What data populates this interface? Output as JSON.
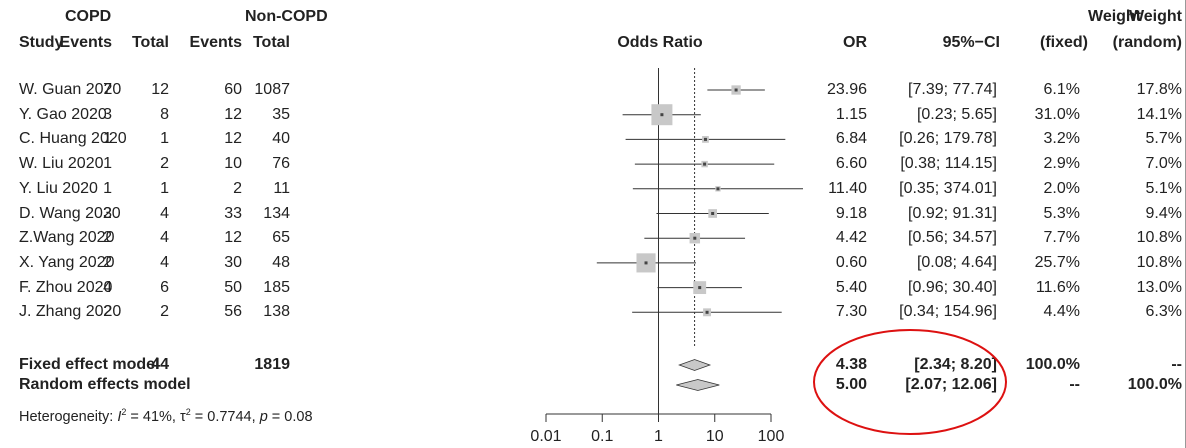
{
  "header": {
    "copd": "COPD",
    "non_copd": "Non-COPD",
    "study": "Study",
    "events1": "Events",
    "total1": "Total",
    "events2": "Events",
    "total2": "Total",
    "odds_ratio": "Odds Ratio",
    "or": "OR",
    "ci": "95%−CI",
    "weight1": "Weight",
    "fixed": "(fixed)",
    "weight2": "Weight",
    "random": "(random)"
  },
  "studies": [
    {
      "study": "W. Guan 2020",
      "ev1": "7",
      "tot1": "12",
      "ev2": "60",
      "tot2": "1087",
      "or": "23.96",
      "ci": "[7.39; 77.74]",
      "wf": "6.1%",
      "wr": "17.8%"
    },
    {
      "study": "Y. Gao 2020",
      "ev1": "3",
      "tot1": "8",
      "ev2": "12",
      "tot2": "35",
      "or": "1.15",
      "ci": "[0.23; 5.65]",
      "wf": "31.0%",
      "wr": "14.1%"
    },
    {
      "study": "C. Huang 2020",
      "ev1": "1",
      "tot1": "1",
      "ev2": "12",
      "tot2": "40",
      "or": "6.84",
      "ci": "[0.26; 179.78]",
      "wf": "3.2%",
      "wr": "5.7%"
    },
    {
      "study": "W. Liu 2020",
      "ev1": "1",
      "tot1": "2",
      "ev2": "10",
      "tot2": "76",
      "or": "6.60",
      "ci": "[0.38; 114.15]",
      "wf": "2.9%",
      "wr": "7.0%"
    },
    {
      "study": "Y. Liu 2020",
      "ev1": "1",
      "tot1": "1",
      "ev2": "2",
      "tot2": "11",
      "or": "11.40",
      "ci": "[0.35; 374.01]",
      "wf": "2.0%",
      "wr": "5.1%"
    },
    {
      "study": "D. Wang 2020",
      "ev1": "3",
      "tot1": "4",
      "ev2": "33",
      "tot2": "134",
      "or": "9.18",
      "ci": "[0.92; 91.31]",
      "wf": "5.3%",
      "wr": "9.4%"
    },
    {
      "study": "Z.Wang 2020",
      "ev1": "2",
      "tot1": "4",
      "ev2": "12",
      "tot2": "65",
      "or": "4.42",
      "ci": "[0.56; 34.57]",
      "wf": "7.7%",
      "wr": "10.8%"
    },
    {
      "study": "X. Yang 2020",
      "ev1": "2",
      "tot1": "4",
      "ev2": "30",
      "tot2": "48",
      "or": "0.60",
      "ci": "[0.08; 4.64]",
      "wf": "25.7%",
      "wr": "10.8%"
    },
    {
      "study": "F. Zhou 2020",
      "ev1": "4",
      "tot1": "6",
      "ev2": "50",
      "tot2": "185",
      "or": "5.40",
      "ci": "[0.96; 30.40]",
      "wf": "11.6%",
      "wr": "13.0%"
    },
    {
      "study": "J. Zhang 2020",
      "ev1": "2",
      "tot1": "2",
      "ev2": "56",
      "tot2": "138",
      "or": "7.30",
      "ci": "[0.34; 154.96]",
      "wf": "4.4%",
      "wr": "6.3%"
    }
  ],
  "fixed": {
    "label": "Fixed effect model",
    "tot1": "44",
    "tot2": "1819",
    "or": "4.38",
    "ci": "[2.34; 8.20]",
    "wf": "100.0%",
    "wr": "--"
  },
  "random": {
    "label": "Random effects model",
    "or": "5.00",
    "ci": "[2.07; 12.06]",
    "wf": "--",
    "wr": "100.0%"
  },
  "heterogeneity": {
    "prefix": "Heterogeneity: ",
    "i_sym": "I",
    "sup2": "2",
    "i_val": " = 41%, ",
    "tau_sym": "τ",
    "tau_val": " = 0.7744, ",
    "p_sym": "p",
    "p_val": " = 0.08"
  },
  "axis_ticks": [
    "0.01",
    "0.1",
    "1",
    "10",
    "100"
  ],
  "chart_data": {
    "type": "forest",
    "scale": "log",
    "xlim": [
      0.01,
      100
    ],
    "xticks": [
      0.01,
      0.1,
      1,
      10,
      100
    ],
    "reference_line": 1,
    "pooled_line": 4.38,
    "points": [
      {
        "or": 23.96,
        "lo": 7.39,
        "hi": 77.74,
        "weight": 6.1
      },
      {
        "or": 1.15,
        "lo": 0.23,
        "hi": 5.65,
        "weight": 31.0
      },
      {
        "or": 6.84,
        "lo": 0.26,
        "hi": 179.78,
        "weight": 3.2
      },
      {
        "or": 6.6,
        "lo": 0.38,
        "hi": 114.15,
        "weight": 2.9
      },
      {
        "or": 11.4,
        "lo": 0.35,
        "hi": 374.01,
        "weight": 2.0
      },
      {
        "or": 9.18,
        "lo": 0.92,
        "hi": 91.31,
        "weight": 5.3
      },
      {
        "or": 4.42,
        "lo": 0.56,
        "hi": 34.57,
        "weight": 7.7
      },
      {
        "or": 0.6,
        "lo": 0.08,
        "hi": 4.64,
        "weight": 25.7
      },
      {
        "or": 5.4,
        "lo": 0.96,
        "hi": 30.4,
        "weight": 11.6
      },
      {
        "or": 7.3,
        "lo": 0.34,
        "hi": 154.96,
        "weight": 4.4
      }
    ],
    "diamonds": [
      {
        "or": 4.38,
        "lo": 2.34,
        "hi": 8.2
      },
      {
        "or": 5.0,
        "lo": 2.07,
        "hi": 12.06
      }
    ],
    "colors": {
      "box": "#c8c8c8",
      "line": "#333333",
      "diamond": "#c8c8c8",
      "highlight": "#dd1111"
    }
  }
}
